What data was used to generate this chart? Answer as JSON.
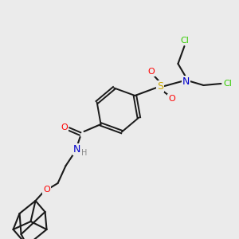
{
  "background_color": "#ebebeb",
  "bond_color": "#1a1a1a",
  "colors": {
    "O": "#ff0000",
    "N": "#0000cc",
    "S": "#ccaa00",
    "Cl": "#33cc00",
    "H": "#888888",
    "C": "#1a1a1a"
  },
  "figsize": [
    3.0,
    3.0
  ],
  "dpi": 100
}
